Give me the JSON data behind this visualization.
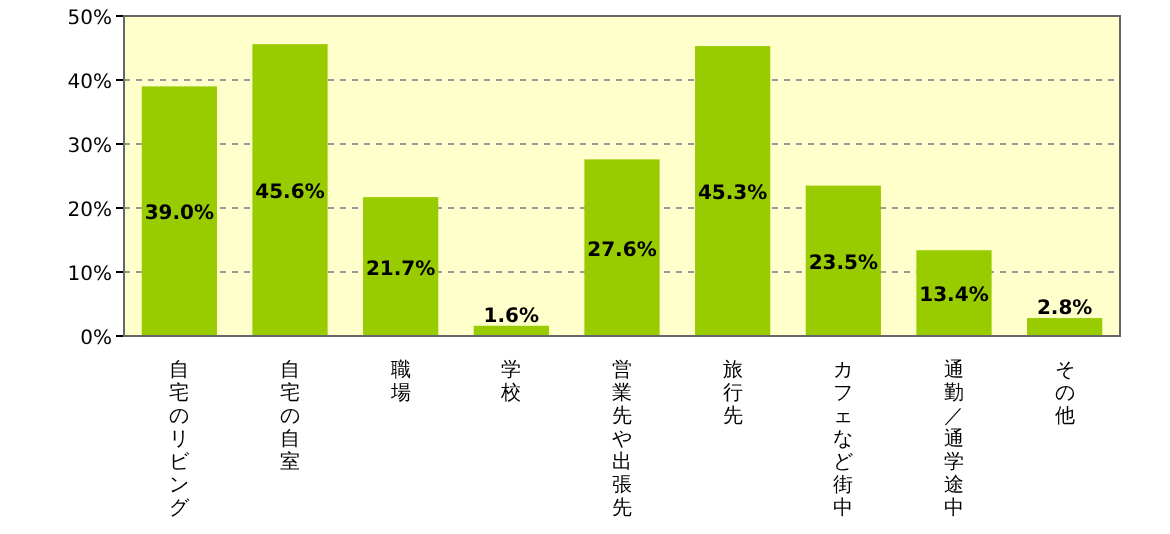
{
  "chart_data": {
    "type": "bar",
    "categories": [
      "自宅のリビング",
      "自宅の自室",
      "職場",
      "学校",
      "営業先や出張先",
      "旅行先",
      "カフェなど街中",
      "通勤／通学途中",
      "その他"
    ],
    "values": [
      39.0,
      45.6,
      21.7,
      1.6,
      27.6,
      45.3,
      23.5,
      13.4,
      2.8
    ],
    "value_labels": [
      "39.0%",
      "45.6%",
      "21.7%",
      "1.6%",
      "27.6%",
      "45.3%",
      "23.5%",
      "13.4%",
      "2.8%"
    ],
    "color": "#99cc00",
    "ylim": [
      0,
      50
    ],
    "yticks": [
      {
        "value": 0,
        "label": "0%"
      },
      {
        "value": 10,
        "label": "10%"
      },
      {
        "value": 20,
        "label": "20%"
      },
      {
        "value": 30,
        "label": "30%"
      },
      {
        "value": 40,
        "label": "40%"
      },
      {
        "value": 50,
        "label": "50%"
      }
    ],
    "grid": "y"
  }
}
